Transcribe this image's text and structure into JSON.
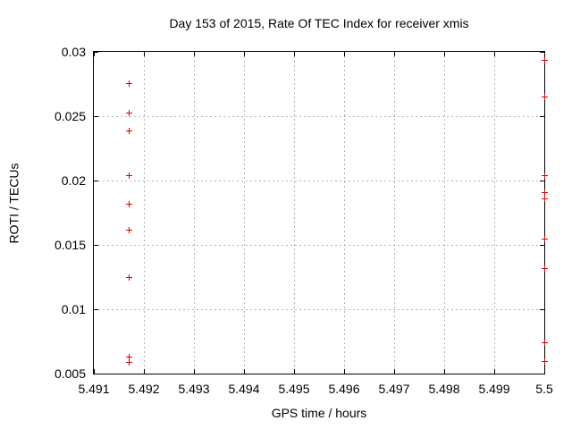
{
  "colors": {
    "background": "#ffffff",
    "axis": "#000000",
    "grid": "#b3b3b3",
    "text": "#000000",
    "marker": "#e00000"
  },
  "chart_data": {
    "type": "scatter",
    "title": "Day 153 of 2015, Rate Of TEC Index for receiver xmis",
    "xlabel": "GPS time / hours",
    "ylabel": "ROTI / TECUs",
    "xlim": [
      5.491,
      5.5
    ],
    "ylim": [
      0.005,
      0.03
    ],
    "grid": true,
    "legend_position": "none",
    "marker": {
      "shape": "plus",
      "size": 7,
      "color": "#e00000"
    },
    "xticks": [
      {
        "v": 5.491,
        "label": "5.491"
      },
      {
        "v": 5.492,
        "label": "5.492"
      },
      {
        "v": 5.493,
        "label": "5.493"
      },
      {
        "v": 5.494,
        "label": "5.494"
      },
      {
        "v": 5.495,
        "label": "5.495"
      },
      {
        "v": 5.496,
        "label": "5.496"
      },
      {
        "v": 5.497,
        "label": "5.497"
      },
      {
        "v": 5.498,
        "label": "5.498"
      },
      {
        "v": 5.499,
        "label": "5.499"
      },
      {
        "v": 5.5,
        "label": "5.5"
      }
    ],
    "yticks": [
      {
        "v": 0.005,
        "label": "0.005"
      },
      {
        "v": 0.01,
        "label": "0.01"
      },
      {
        "v": 0.015,
        "label": "0.015"
      },
      {
        "v": 0.02,
        "label": "0.02"
      },
      {
        "v": 0.025,
        "label": "0.025"
      },
      {
        "v": 0.03,
        "label": "0.03"
      }
    ],
    "series": [
      {
        "name": "ROTI",
        "color": "#e00000",
        "points": [
          {
            "x": 5.4917,
            "y": 0.0276
          },
          {
            "x": 5.4917,
            "y": 0.0253
          },
          {
            "x": 5.4917,
            "y": 0.0239
          },
          {
            "x": 5.4917,
            "y": 0.0204
          },
          {
            "x": 5.4917,
            "y": 0.0182
          },
          {
            "x": 5.4917,
            "y": 0.0162
          },
          {
            "x": 5.4917,
            "y": 0.0125
          },
          {
            "x": 5.4917,
            "y": 0.0063
          },
          {
            "x": 5.4917,
            "y": 0.0059
          },
          {
            "x": 5.5,
            "y": 0.0294
          },
          {
            "x": 5.5,
            "y": 0.0265
          },
          {
            "x": 5.5,
            "y": 0.0204
          },
          {
            "x": 5.5,
            "y": 0.0191
          },
          {
            "x": 5.5,
            "y": 0.0186
          },
          {
            "x": 5.5,
            "y": 0.0155
          },
          {
            "x": 5.5,
            "y": 0.0132
          },
          {
            "x": 5.5,
            "y": 0.0074
          },
          {
            "x": 5.5,
            "y": 0.006
          }
        ]
      }
    ]
  }
}
